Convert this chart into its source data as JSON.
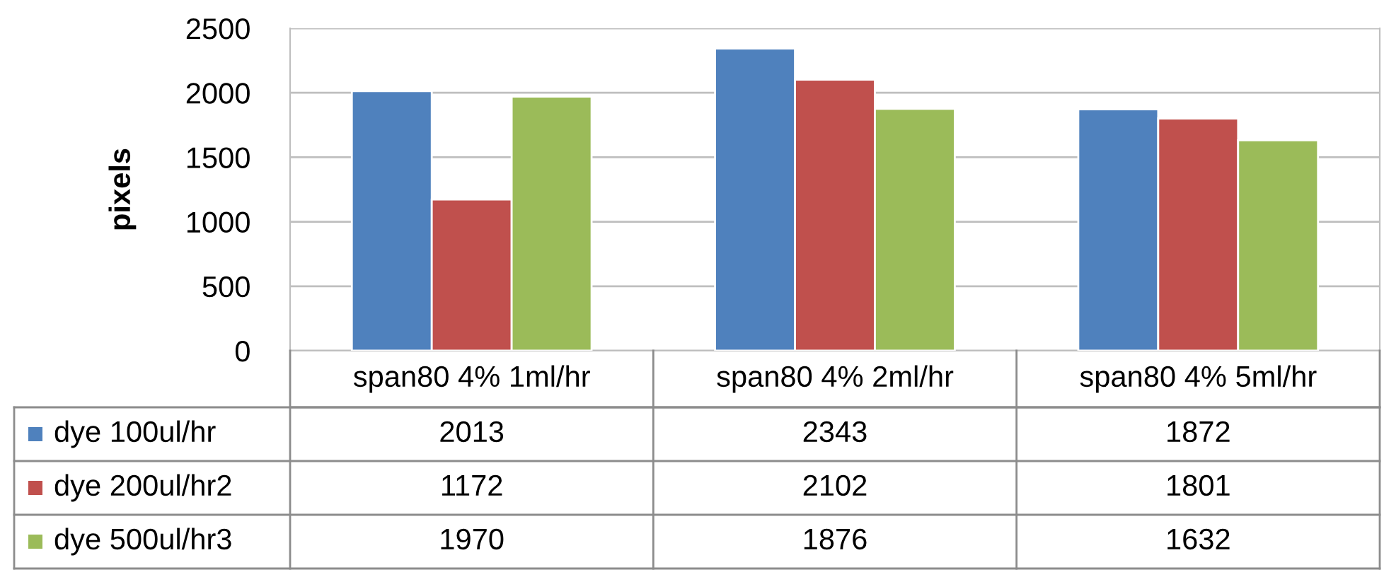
{
  "chart_data": {
    "type": "bar",
    "ylabel": "pixels",
    "categories": [
      "span80 4% 1ml/hr",
      "span80 4% 2ml/hr",
      "span80 4% 5ml/hr"
    ],
    "series": [
      {
        "name": "dye 100ul/hr",
        "color": "#4f81bd",
        "values": [
          2013,
          2343,
          1872
        ]
      },
      {
        "name": "dye 200ul/hr2",
        "color": "#c0504d",
        "values": [
          1172,
          2102,
          1801
        ]
      },
      {
        "name": "dye 500ul/hr3",
        "color": "#9bbb59",
        "values": [
          1970,
          1876,
          1632
        ]
      }
    ],
    "ylim": [
      0,
      2500
    ],
    "yticks": [
      0,
      500,
      1000,
      1500,
      2000,
      2500
    ],
    "grid": "y",
    "data_labels": true,
    "legend": "bottom"
  }
}
